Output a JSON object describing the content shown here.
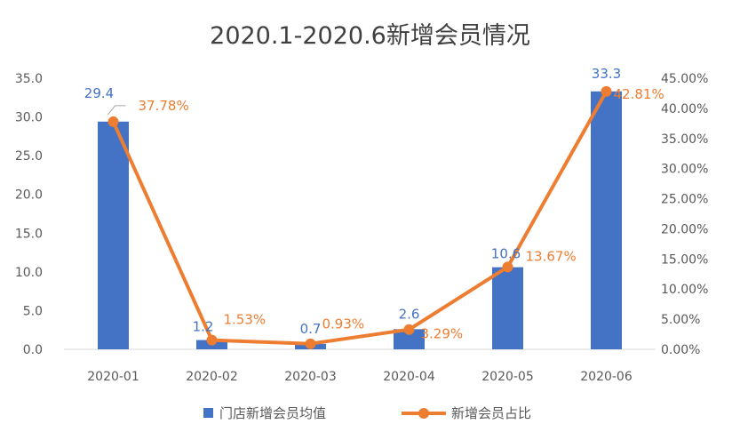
{
  "chart_data": {
    "type": "bar+line",
    "title": "2020.1-2020.6新增会员情况",
    "categories": [
      "2020-01",
      "2020-02",
      "2020-03",
      "2020-04",
      "2020-05",
      "2020-06"
    ],
    "series": [
      {
        "name": "门店新增会员均值",
        "type": "bar",
        "axis": "left",
        "values": [
          29.4,
          1.2,
          0.7,
          2.6,
          10.6,
          33.3
        ],
        "labels": [
          "29.4",
          "1.2",
          "0.7",
          "2.6",
          "10.6",
          "33.3"
        ],
        "color": "#4472C4"
      },
      {
        "name": "新增会员占比",
        "type": "line",
        "axis": "right",
        "values": [
          37.78,
          1.53,
          0.93,
          3.29,
          13.67,
          42.81
        ],
        "labels": [
          "37.78%",
          "1.53%",
          "0.93%",
          "3.29%",
          "13.67%",
          "42.81%"
        ],
        "color": "#ED7D31"
      }
    ],
    "y_left": {
      "range": [
        0,
        35
      ],
      "ticks": [
        "0.0",
        "5.0",
        "10.0",
        "15.0",
        "20.0",
        "25.0",
        "30.0",
        "35.0"
      ]
    },
    "y_right": {
      "range": [
        0,
        45
      ],
      "ticks": [
        "0.00%",
        "5.00%",
        "10.00%",
        "15.00%",
        "20.00%",
        "25.00%",
        "30.00%",
        "35.00%",
        "40.00%",
        "45.00%"
      ]
    },
    "grid": false,
    "legend": "bottom"
  }
}
